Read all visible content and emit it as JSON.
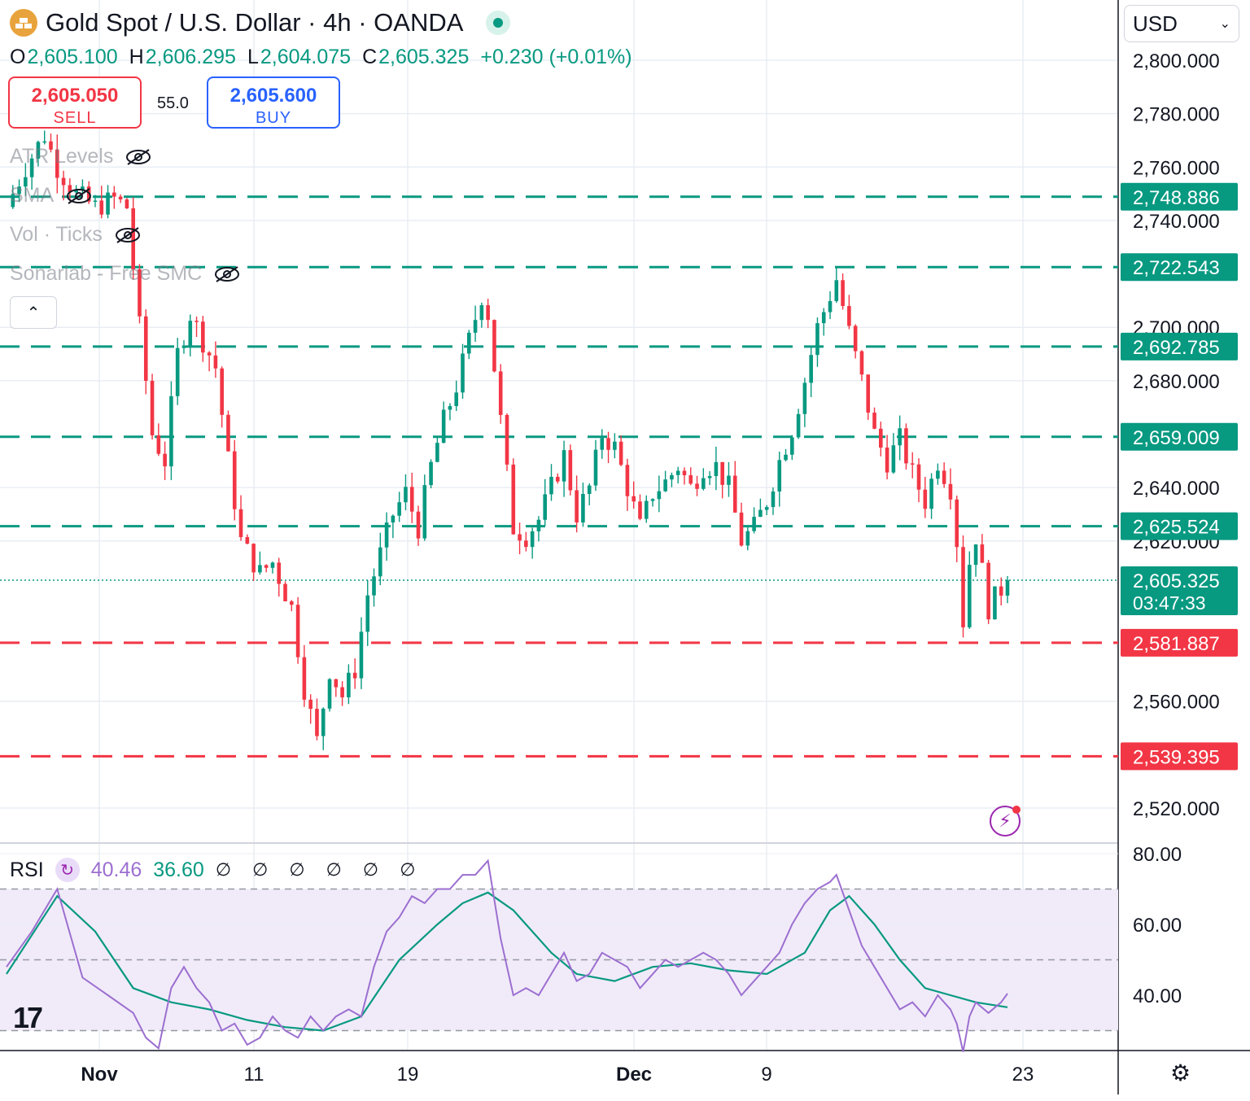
{
  "header": {
    "symbol_title": "Gold Spot / U.S. Dollar · 4h · OANDA",
    "logo_icon": "gold-bars-icon",
    "live_icon": "market-open-dot-icon"
  },
  "ohlc": {
    "o_label": "O",
    "o_value": "2,605.100",
    "h_label": "H",
    "h_value": "2,606.295",
    "l_label": "L",
    "l_value": "2,604.075",
    "c_label": "C",
    "c_value": "2,605.325",
    "change": "+0.230 (+0.01%)"
  },
  "trade": {
    "sell_price": "2,605.050",
    "sell_label": "SELL",
    "spread": "55.0",
    "buy_price": "2,605.600",
    "buy_label": "BUY"
  },
  "indicators": [
    {
      "label": "ATR Levels"
    },
    {
      "label": "SMA"
    },
    {
      "label": "Vol · Ticks"
    },
    {
      "label": "Sonarlab - Free SMC"
    }
  ],
  "currency_select": {
    "value": "USD"
  },
  "rsi": {
    "label": "RSI",
    "value1": "40.46",
    "value2": "36.60",
    "settings_glyphs": "∅ ∅ ∅ ∅ ∅ ∅"
  },
  "colors": {
    "up": "#089981",
    "down": "#f23645",
    "rsi_line": "#9c6fd0",
    "rsi_ma": "#089981",
    "rsi_band": "#f1ebf9"
  },
  "chart_data": {
    "type": "candlestick",
    "y_axis_ticks": [
      "2,800.000",
      "2,780.000",
      "2,760.000",
      "2,740.000",
      "2,700.000",
      "2,680.000",
      "2,640.000",
      "2,620.000",
      "2,560.000",
      "2,520.000"
    ],
    "ylim": [
      2510,
      2810
    ],
    "x_axis_ticks": [
      "Nov",
      "11",
      "19",
      "Dec",
      "9",
      "23"
    ],
    "current_price": {
      "value": "2,605.325",
      "countdown": "03:47:33",
      "numeric": 2605.325
    },
    "level_lines": [
      {
        "label": "2,748.886",
        "value": 2748.886,
        "type": "resistance"
      },
      {
        "label": "2,722.543",
        "value": 2722.543,
        "type": "resistance"
      },
      {
        "label": "2,692.785",
        "value": 2692.785,
        "type": "resistance"
      },
      {
        "label": "2,659.009",
        "value": 2659.009,
        "type": "resistance"
      },
      {
        "label": "2,625.524",
        "value": 2625.524,
        "type": "resistance"
      },
      {
        "label": "2,581.887",
        "value": 2581.887,
        "type": "support"
      },
      {
        "label": "2,539.395",
        "value": 2539.395,
        "type": "support"
      }
    ],
    "price_path": [
      [
        0,
        2745
      ],
      [
        3,
        2760
      ],
      [
        6,
        2772
      ],
      [
        8,
        2760
      ],
      [
        11,
        2750
      ],
      [
        14,
        2745
      ],
      [
        17,
        2748
      ],
      [
        19,
        2745
      ],
      [
        21,
        2700
      ],
      [
        23,
        2660
      ],
      [
        25,
        2650
      ],
      [
        27,
        2690
      ],
      [
        29,
        2705
      ],
      [
        31,
        2695
      ],
      [
        33,
        2685
      ],
      [
        35,
        2650
      ],
      [
        37,
        2620
      ],
      [
        40,
        2608
      ],
      [
        42,
        2612
      ],
      [
        45,
        2595
      ],
      [
        47,
        2565
      ],
      [
        49,
        2545
      ],
      [
        51,
        2572
      ],
      [
        53,
        2562
      ],
      [
        55,
        2572
      ],
      [
        57,
        2600
      ],
      [
        59,
        2615
      ],
      [
        61,
        2630
      ],
      [
        63,
        2638
      ],
      [
        65,
        2625
      ],
      [
        67,
        2648
      ],
      [
        69,
        2665
      ],
      [
        71,
        2678
      ],
      [
        73,
        2695
      ],
      [
        75,
        2712
      ],
      [
        76,
        2705
      ],
      [
        78,
        2665
      ],
      [
        80,
        2625
      ],
      [
        82,
        2622
      ],
      [
        84,
        2628
      ],
      [
        86,
        2640
      ],
      [
        88,
        2652
      ],
      [
        90,
        2630
      ],
      [
        92,
        2640
      ],
      [
        94,
        2660
      ],
      [
        96,
        2655
      ],
      [
        98,
        2640
      ],
      [
        100,
        2625
      ],
      [
        102,
        2638
      ],
      [
        104,
        2642
      ],
      [
        106,
        2648
      ],
      [
        108,
        2640
      ],
      [
        110,
        2648
      ],
      [
        112,
        2648
      ],
      [
        114,
        2640
      ],
      [
        116,
        2620
      ],
      [
        118,
        2625
      ],
      [
        120,
        2635
      ],
      [
        122,
        2650
      ],
      [
        124,
        2662
      ],
      [
        126,
        2680
      ],
      [
        128,
        2700
      ],
      [
        130,
        2712
      ],
      [
        131,
        2718
      ],
      [
        133,
        2698
      ],
      [
        135,
        2680
      ],
      [
        137,
        2660
      ],
      [
        139,
        2650
      ],
      [
        141,
        2658
      ],
      [
        143,
        2645
      ],
      [
        145,
        2635
      ],
      [
        147,
        2650
      ],
      [
        149,
        2640
      ],
      [
        150,
        2620
      ],
      [
        151,
        2590
      ],
      [
        152,
        2612
      ],
      [
        153,
        2622
      ],
      [
        155,
        2595
      ],
      [
        157,
        2602
      ],
      [
        158,
        2605.3
      ]
    ],
    "rsi_scale": {
      "ticks": [
        "80.00",
        "60.00",
        "40.00"
      ],
      "ylim": [
        25,
        82
      ],
      "overbought": 70,
      "oversold": 30,
      "mid": 50
    },
    "rsi_path": [
      [
        0,
        48
      ],
      [
        4,
        58
      ],
      [
        8,
        70
      ],
      [
        12,
        45
      ],
      [
        16,
        40
      ],
      [
        20,
        35
      ],
      [
        22,
        28
      ],
      [
        24,
        25
      ],
      [
        26,
        42
      ],
      [
        28,
        48
      ],
      [
        30,
        42
      ],
      [
        32,
        38
      ],
      [
        34,
        30
      ],
      [
        36,
        32
      ],
      [
        38,
        26
      ],
      [
        40,
        28
      ],
      [
        42,
        34
      ],
      [
        44,
        30
      ],
      [
        46,
        28
      ],
      [
        48,
        34
      ],
      [
        50,
        30
      ],
      [
        52,
        34
      ],
      [
        54,
        36
      ],
      [
        56,
        34
      ],
      [
        58,
        48
      ],
      [
        60,
        58
      ],
      [
        62,
        62
      ],
      [
        64,
        68
      ],
      [
        66,
        66
      ],
      [
        68,
        70
      ],
      [
        70,
        70
      ],
      [
        72,
        74
      ],
      [
        74,
        74
      ],
      [
        76,
        78
      ],
      [
        78,
        56
      ],
      [
        80,
        40
      ],
      [
        82,
        42
      ],
      [
        84,
        40
      ],
      [
        86,
        46
      ],
      [
        88,
        52
      ],
      [
        90,
        44
      ],
      [
        92,
        46
      ],
      [
        94,
        52
      ],
      [
        96,
        50
      ],
      [
        98,
        48
      ],
      [
        100,
        42
      ],
      [
        102,
        46
      ],
      [
        104,
        50
      ],
      [
        106,
        48
      ],
      [
        108,
        50
      ],
      [
        110,
        52
      ],
      [
        112,
        50
      ],
      [
        114,
        46
      ],
      [
        116,
        40
      ],
      [
        118,
        44
      ],
      [
        120,
        48
      ],
      [
        122,
        52
      ],
      [
        124,
        60
      ],
      [
        126,
        66
      ],
      [
        128,
        70
      ],
      [
        130,
        72
      ],
      [
        131,
        74
      ],
      [
        133,
        64
      ],
      [
        135,
        54
      ],
      [
        137,
        48
      ],
      [
        139,
        42
      ],
      [
        141,
        36
      ],
      [
        143,
        38
      ],
      [
        145,
        34
      ],
      [
        147,
        40
      ],
      [
        149,
        36
      ],
      [
        150,
        32
      ],
      [
        151,
        24
      ],
      [
        152,
        34
      ],
      [
        153,
        38
      ],
      [
        155,
        35
      ],
      [
        157,
        38
      ],
      [
        158,
        40.46
      ]
    ],
    "rsi_ma_path": [
      [
        0,
        46
      ],
      [
        8,
        68
      ],
      [
        14,
        58
      ],
      [
        20,
        42
      ],
      [
        26,
        38
      ],
      [
        32,
        36
      ],
      [
        38,
        33
      ],
      [
        44,
        31
      ],
      [
        50,
        30
      ],
      [
        56,
        34
      ],
      [
        62,
        50
      ],
      [
        68,
        60
      ],
      [
        72,
        66
      ],
      [
        76,
        69
      ],
      [
        80,
        64
      ],
      [
        86,
        52
      ],
      [
        90,
        46
      ],
      [
        96,
        44
      ],
      [
        102,
        48
      ],
      [
        108,
        49
      ],
      [
        114,
        47
      ],
      [
        120,
        46
      ],
      [
        126,
        52
      ],
      [
        130,
        64
      ],
      [
        133,
        68
      ],
      [
        137,
        60
      ],
      [
        141,
        50
      ],
      [
        145,
        42
      ],
      [
        149,
        40
      ],
      [
        153,
        38
      ],
      [
        158,
        36.6
      ]
    ]
  }
}
